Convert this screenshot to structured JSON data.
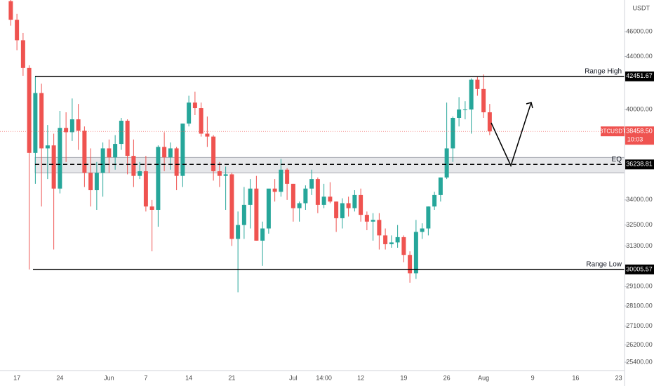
{
  "chart_data": {
    "type": "candlestick",
    "currency": "USDT",
    "log_scale": true,
    "up_color": "#26a69a",
    "down_color": "#ef5350",
    "categories": [
      null,
      "17",
      null,
      null,
      null,
      null,
      null,
      null,
      "24",
      null,
      null,
      null,
      null,
      null,
      null,
      null,
      "Jun",
      null,
      null,
      null,
      null,
      null,
      "7",
      null,
      null,
      null,
      null,
      null,
      null,
      "14",
      null,
      null,
      null,
      null,
      null,
      null,
      "21",
      null,
      null,
      null,
      null,
      null,
      null,
      null,
      null,
      null,
      "Jul",
      null,
      null,
      null,
      null,
      "14:00",
      null,
      null,
      null,
      null,
      null,
      "12",
      null,
      null,
      null,
      null,
      null,
      null,
      "19",
      null,
      null,
      null,
      null,
      null,
      null,
      "26",
      null,
      null,
      null,
      null,
      null,
      "Aug",
      null,
      null,
      null,
      null,
      null,
      null,
      null,
      "9",
      null,
      null,
      null,
      null,
      null,
      null,
      "16",
      null,
      null,
      null,
      null,
      null,
      null,
      "23"
    ],
    "ohlc": [
      [
        48600,
        49000,
        46500,
        47000
      ],
      [
        47000,
        47500,
        44500,
        45300
      ],
      [
        45300,
        45900,
        42500,
        43100
      ],
      [
        43100,
        43300,
        30005,
        37000
      ],
      [
        37000,
        42451,
        35000,
        41200
      ],
      [
        41200,
        41900,
        33600,
        37300
      ],
      [
        37300,
        38900,
        35300,
        37500
      ],
      [
        37500,
        38300,
        31100,
        34700
      ],
      [
        34700,
        39900,
        34400,
        38700
      ],
      [
        38700,
        39800,
        36400,
        38400
      ],
      [
        38400,
        40800,
        37800,
        39300
      ],
      [
        39300,
        40400,
        37200,
        38500
      ],
      [
        38500,
        38800,
        34800,
        35700
      ],
      [
        35700,
        37300,
        33600,
        34600
      ],
      [
        34600,
        36400,
        33400,
        35700
      ],
      [
        35700,
        37700,
        34200,
        37300
      ],
      [
        37300,
        37900,
        35700,
        36700
      ],
      [
        36700,
        38200,
        35900,
        37600
      ],
      [
        37600,
        39400,
        37200,
        39200
      ],
      [
        39200,
        39300,
        35600,
        36800
      ],
      [
        36800,
        37900,
        34800,
        35500
      ],
      [
        35500,
        36400,
        35300,
        35800
      ],
      [
        35800,
        36800,
        33300,
        33600
      ],
      [
        33600,
        34000,
        31000,
        33400
      ],
      [
        33400,
        37500,
        32400,
        37400
      ],
      [
        37400,
        38400,
        35800,
        36700
      ],
      [
        36700,
        37700,
        35900,
        37300
      ],
      [
        37300,
        37400,
        34600,
        35500
      ],
      [
        35500,
        39000,
        34800,
        39000
      ],
      [
        39000,
        41000,
        38800,
        40500
      ],
      [
        40500,
        41300,
        39600,
        40100
      ],
      [
        40100,
        40500,
        38100,
        38300
      ],
      [
        38300,
        39500,
        37400,
        38100
      ],
      [
        38100,
        38200,
        35200,
        35800
      ],
      [
        35800,
        36400,
        34800,
        35500
      ],
      [
        35500,
        36100,
        33400,
        35600
      ],
      [
        35600,
        35700,
        31300,
        31700
      ],
      [
        31700,
        33300,
        28800,
        32500
      ],
      [
        32500,
        34800,
        31700,
        33700
      ],
      [
        33700,
        35300,
        32300,
        34700
      ],
      [
        34700,
        35500,
        31600,
        31600
      ],
      [
        31600,
        32700,
        30200,
        32300
      ],
      [
        32300,
        34600,
        32000,
        34700
      ],
      [
        34700,
        35300,
        33900,
        34500
      ],
      [
        34500,
        36600,
        34200,
        35900
      ],
      [
        35900,
        36000,
        34000,
        35000
      ],
      [
        35000,
        35000,
        32700,
        33500
      ],
      [
        33500,
        33900,
        32700,
        33800
      ],
      [
        33800,
        34900,
        33400,
        34700
      ],
      [
        34700,
        35900,
        34300,
        35300
      ],
      [
        35300,
        35400,
        33200,
        33700
      ],
      [
        33700,
        35000,
        33500,
        34200
      ],
      [
        34200,
        35100,
        33800,
        33900
      ],
      [
        33900,
        33900,
        32100,
        32900
      ],
      [
        32900,
        34100,
        32300,
        33800
      ],
      [
        33800,
        34200,
        33000,
        33500
      ],
      [
        33500,
        34600,
        33300,
        34300
      ],
      [
        34300,
        34700,
        32700,
        33100
      ],
      [
        33100,
        33300,
        32200,
        32700
      ],
      [
        32700,
        33200,
        31600,
        32800
      ],
      [
        32800,
        33200,
        31100,
        31900
      ],
      [
        31900,
        32300,
        31100,
        31400
      ],
      [
        31400,
        31900,
        31200,
        31500
      ],
      [
        31500,
        32500,
        31200,
        31800
      ],
      [
        31800,
        31900,
        30400,
        30800
      ],
      [
        30800,
        31000,
        29300,
        29800
      ],
      [
        29800,
        32800,
        29500,
        32100
      ],
      [
        32100,
        32600,
        31700,
        32300
      ],
      [
        32300,
        33600,
        31900,
        33600
      ],
      [
        33600,
        34500,
        33400,
        34300
      ],
      [
        34300,
        35400,
        33900,
        35400
      ],
      [
        35400,
        40500,
        35300,
        37300
      ],
      [
        37300,
        39500,
        36400,
        39400
      ],
      [
        39400,
        40900,
        38800,
        40000
      ],
      [
        40000,
        40600,
        39300,
        40000
      ],
      [
        40000,
        42300,
        38300,
        42200
      ],
      [
        42200,
        42400,
        41000,
        41500
      ],
      [
        41500,
        42600,
        39400,
        39800
      ],
      [
        39800,
        40400,
        38200,
        38458.5
      ],
      null,
      null,
      null,
      null,
      null,
      null,
      null,
      null,
      null,
      null,
      null,
      null,
      null,
      null,
      null,
      null,
      null,
      null,
      null,
      null,
      null
    ],
    "ylim": [
      25020,
      48700
    ],
    "yticks": [
      {
        "value": 25400,
        "label": "25400.00"
      },
      {
        "value": 26200,
        "label": "26200.00"
      },
      {
        "value": 27100,
        "label": "27100.00"
      },
      {
        "value": 28100,
        "label": "28100.00"
      },
      {
        "value": 29100,
        "label": "29100.00"
      },
      {
        "value": 31300,
        "label": "31300.00"
      },
      {
        "value": 32500,
        "label": "32500.00"
      },
      {
        "value": 34000,
        "label": "34000.00"
      },
      {
        "value": 40000,
        "label": "40000.00"
      },
      {
        "value": 44000,
        "label": "44000.00"
      },
      {
        "value": 46000,
        "label": "46000.00"
      }
    ],
    "levels": [
      {
        "name": "Range High",
        "value": 42451.67
      },
      {
        "name": "EQ",
        "value": 36238.81
      },
      {
        "name": "Range Low",
        "value": 30005.57
      }
    ],
    "eq_zone": [
      35700,
      36700
    ],
    "last_price": {
      "symbol": "BTCUSDT",
      "value": 38458.5,
      "label": "38458.50",
      "countdown": "10:03"
    }
  }
}
